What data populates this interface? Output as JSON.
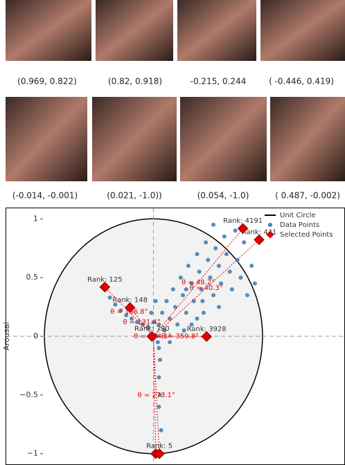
{
  "captions": [
    "(0.969, 0.822)",
    "(0.82, 0.918)",
    "-0.215, 0.244",
    "( -0.446, 0.419)",
    "(-0.014, -0.001)",
    "(0.021, -1.0))",
    "(0.054, -1.0)",
    "( 0.487, -0.002)"
  ],
  "chart_data": {
    "type": "scatter",
    "ylabel": "Arousal",
    "xlim": [
      -1.35,
      1.75
    ],
    "ylim": [
      -1.09,
      1.09
    ],
    "yticks": [
      1,
      0.5,
      0,
      {
        "value": -0.5,
        "label": "−0.5"
      },
      {
        "value": -1,
        "label": "−1"
      }
    ],
    "unit_circle": {
      "name": "Unit Circle",
      "color": "#000000"
    },
    "legend": "upper right",
    "series": [
      {
        "name": "Data Points",
        "color": "#4682b4",
        "x": [
          0.05,
          0.08,
          0.1,
          0.12,
          0.15,
          0.18,
          0.2,
          0.22,
          0.25,
          0.27,
          0.3,
          0.32,
          0.35,
          0.37,
          0.4,
          0.42,
          0.44,
          0.46,
          0.48,
          0.5,
          0.52,
          0.55,
          0.57,
          0.6,
          0.62,
          0.65,
          0.67,
          0.7,
          0.72,
          0.75,
          0.77,
          0.8,
          0.83,
          0.86,
          0.9,
          0.93,
          0.28,
          0.35,
          0.15,
          0.4,
          0.6,
          0.55,
          0.45,
          0.3,
          -0.44,
          -0.4,
          -0.35,
          -0.3,
          -0.25,
          -0.2,
          -0.15,
          -0.1,
          -0.05,
          0.0,
          0.02,
          -0.02,
          0.05,
          0.06,
          0.05,
          0.06,
          0.05,
          0.07,
          0.04,
          0.0,
          0.03
        ],
        "values": [
          0.1,
          0.2,
          0.05,
          0.3,
          0.15,
          0.4,
          0.25,
          0.1,
          0.5,
          0.35,
          0.2,
          0.6,
          0.45,
          0.3,
          0.7,
          0.55,
          0.4,
          0.2,
          0.8,
          0.65,
          0.5,
          0.35,
          0.75,
          0.6,
          0.45,
          0.85,
          0.7,
          0.55,
          0.4,
          0.9,
          0.65,
          0.5,
          0.8,
          0.35,
          0.6,
          0.45,
          0.05,
          0.1,
          -0.05,
          0.15,
          0.25,
          0.95,
          0.3,
          0.4,
          0.4,
          0.33,
          0.27,
          0.22,
          0.18,
          0.15,
          0.12,
          0.1,
          0.08,
          0.12,
          0.3,
          0.2,
          -0.1,
          -0.2,
          -0.35,
          -0.5,
          -0.6,
          -0.8,
          -0.05,
          -0.02,
          0.0
        ]
      },
      {
        "name": "Selected Points",
        "color": "#e00000",
        "x": [
          0.969,
          0.82,
          -0.215,
          -0.446,
          -0.014,
          0.021,
          0.054,
          0.487
        ],
        "values": [
          0.822,
          0.918,
          0.244,
          0.419,
          -0.001,
          -1.0,
          -1.0,
          -0.002
        ],
        "rank_labels": [
          "Rank: 431",
          "Rank: 4191",
          "Rank: 148",
          "Rank: 125",
          "Rank: 790",
          null,
          "Rank: 5",
          "Rank: 3928"
        ],
        "angle_labels": [
          "θ = 40.3°",
          "θ = 48.2°",
          "θ = 131.4°",
          "θ = 136.8°",
          "θ = 184.1°",
          null,
          "θ = 273.1°",
          "θ = 359.8°"
        ]
      }
    ]
  }
}
